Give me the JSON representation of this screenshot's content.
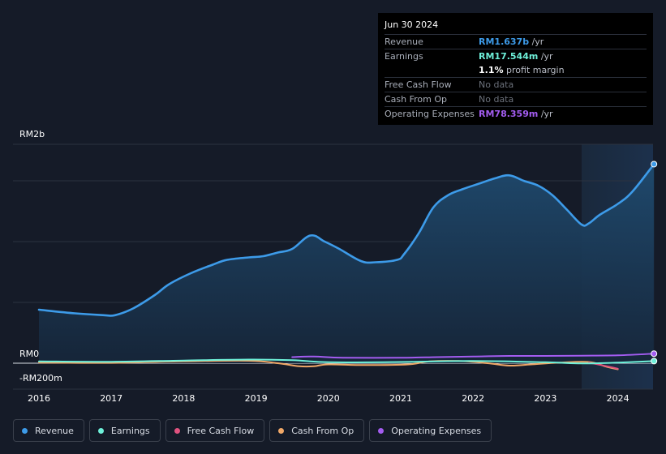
{
  "tooltip": {
    "date": "Jun 30 2024",
    "rows": [
      {
        "label": "Revenue",
        "value": "RM1.637b",
        "unit": "/yr",
        "color": "#3d9be9"
      },
      {
        "label": "Earnings",
        "value": "RM17.544m",
        "unit": "/yr",
        "color": "#6ef0d9"
      },
      {
        "label": "",
        "value": "1.1%",
        "unit": "profit margin",
        "color": "#ffffff"
      },
      {
        "label": "Free Cash Flow",
        "value": "No data",
        "unit": "",
        "color": "#6b707a"
      },
      {
        "label": "Cash From Op",
        "value": "No data",
        "unit": "",
        "color": "#6b707a"
      },
      {
        "label": "Operating Expenses",
        "value": "RM78.359m",
        "unit": "/yr",
        "color": "#a35cf0"
      }
    ]
  },
  "legend": [
    {
      "name": "Revenue",
      "color": "#3d9be9"
    },
    {
      "name": "Earnings",
      "color": "#6ef0d9"
    },
    {
      "name": "Free Cash Flow",
      "color": "#e0527f"
    },
    {
      "name": "Cash From Op",
      "color": "#f0a868"
    },
    {
      "name": "Operating Expenses",
      "color": "#a35cf0"
    }
  ],
  "chart_data": {
    "type": "line",
    "title": "",
    "xlabel": "",
    "ylabel": "",
    "y_tick_labels": [
      "RM2b",
      "RM0",
      "-RM200m"
    ],
    "x_tick_labels": [
      "2016",
      "2017",
      "2018",
      "2019",
      "2020",
      "2021",
      "2022",
      "2023",
      "2024"
    ],
    "xlim": [
      2016.0,
      2024.5
    ],
    "ylim": [
      -200,
      1800
    ],
    "past_data_start": 2023.5,
    "series": [
      {
        "name": "Revenue",
        "color": "#3d9be9",
        "fill": true,
        "x": [
          2016.0,
          2016.5,
          2016.9,
          2017.05,
          2017.3,
          2017.6,
          2017.8,
          2018.1,
          2018.4,
          2018.6,
          2018.9,
          2019.1,
          2019.3,
          2019.5,
          2019.75,
          2019.95,
          2020.15,
          2020.45,
          2020.65,
          2020.95,
          2021.05,
          2021.25,
          2021.45,
          2021.65,
          2021.85,
          2022.1,
          2022.3,
          2022.5,
          2022.7,
          2022.9,
          2023.1,
          2023.3,
          2023.5,
          2023.6,
          2023.75,
          2024.0,
          2024.2,
          2024.5
        ],
        "values": [
          440,
          410,
          395,
          395,
          450,
          560,
          650,
          740,
          810,
          850,
          870,
          880,
          910,
          940,
          1050,
          1000,
          940,
          840,
          830,
          850,
          900,
          1070,
          1280,
          1380,
          1430,
          1480,
          1520,
          1545,
          1500,
          1460,
          1380,
          1260,
          1140,
          1150,
          1220,
          1310,
          1410,
          1637
        ]
      },
      {
        "name": "Earnings",
        "color": "#6ef0d9",
        "fill": false,
        "x": [
          2016.0,
          2017.0,
          2018.0,
          2018.9,
          2019.5,
          2020.0,
          2021.0,
          2022.0,
          2023.0,
          2023.5,
          2024.0,
          2024.5
        ],
        "values": [
          15,
          12,
          22,
          30,
          25,
          8,
          10,
          18,
          8,
          -2,
          5,
          17.5
        ]
      },
      {
        "name": "Cash From Op",
        "color": "#f0a868",
        "fill": false,
        "x": [
          2016.0,
          2017.0,
          2018.0,
          2018.9,
          2019.3,
          2019.6,
          2019.8,
          2020.0,
          2020.5,
          2021.1,
          2021.4,
          2021.8,
          2022.2,
          2022.5,
          2022.8,
          2023.2,
          2023.6,
          2023.85,
          2024.0
        ],
        "values": [
          5,
          3,
          15,
          20,
          0,
          -25,
          -25,
          -10,
          -15,
          -10,
          15,
          18,
          0,
          -20,
          -10,
          5,
          10,
          -30,
          -50
        ]
      },
      {
        "name": "Free Cash Flow",
        "color": "#e0527f",
        "fill": false,
        "x": [
          2023.6,
          2023.85,
          2024.0
        ],
        "values": [
          5,
          -25,
          -45
        ]
      },
      {
        "name": "Operating Expenses",
        "color": "#a35cf0",
        "fill": false,
        "x": [
          2019.5,
          2019.8,
          2020.2,
          2021.0,
          2021.5,
          2022.0,
          2022.5,
          2023.0,
          2023.5,
          2024.0,
          2024.5
        ],
        "values": [
          50,
          55,
          45,
          45,
          50,
          55,
          60,
          60,
          62,
          65,
          78.4
        ]
      }
    ]
  }
}
